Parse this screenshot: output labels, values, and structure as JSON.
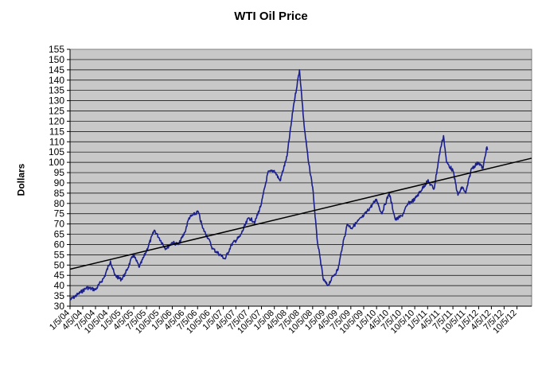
{
  "chart_data": {
    "type": "line",
    "title": "WTI Oil Price",
    "ylabel": "Dollars",
    "xlabel": "",
    "ylim": [
      30,
      155
    ],
    "yticks": [
      30,
      35,
      40,
      45,
      50,
      55,
      60,
      65,
      70,
      75,
      80,
      85,
      90,
      95,
      100,
      105,
      110,
      115,
      120,
      125,
      130,
      135,
      140,
      145,
      150,
      155
    ],
    "grid": true,
    "legend": "none",
    "x_tick_labels": [
      "1/5/04",
      "4/5/04",
      "7/5/04",
      "10/5/04",
      "1/5/05",
      "4/5/05",
      "7/5/05",
      "10/5/05",
      "1/5/06",
      "4/5/06",
      "7/5/06",
      "10/5/06",
      "1/5/07",
      "4/5/07",
      "7/5/07",
      "10/5/07",
      "1/5/08",
      "4/5/08",
      "7/5/08",
      "10/5/08",
      "1/5/09",
      "4/5/09",
      "7/5/09",
      "10/5/09",
      "1/5/10",
      "4/5/10",
      "7/5/10",
      "10/5/10",
      "1/5/11",
      "4/5/11",
      "7/5/11",
      "10/5/11",
      "1/5/12",
      "4/5/12",
      "7/5/12",
      "10/5/12"
    ],
    "series": [
      {
        "type": "line",
        "color": "#1a1f8c",
        "x": [
          "1/5/04",
          "3/5/04",
          "5/5/04",
          "7/5/04",
          "9/5/04",
          "10/20/04",
          "11/20/04",
          "1/5/05",
          "2/5/05",
          "4/1/05",
          "5/15/05",
          "7/5/05",
          "8/30/05",
          "10/5/05",
          "11/20/05",
          "1/5/06",
          "2/20/06",
          "4/5/06",
          "5/5/06",
          "7/10/06",
          "8/10/06",
          "9/20/06",
          "10/20/06",
          "1/18/07",
          "3/5/07",
          "5/5/07",
          "7/5/07",
          "8/20/07",
          "10/5/07",
          "11/20/07",
          "1/5/08",
          "2/15/08",
          "4/5/08",
          "5/20/08",
          "7/3/08",
          "8/5/08",
          "9/5/08",
          "10/5/08",
          "11/5/08",
          "12/20/08",
          "1/20/09",
          "3/5/09",
          "4/5/09",
          "5/5/09",
          "6/10/09",
          "7/10/09",
          "8/20/09",
          "10/5/09",
          "1/5/10",
          "2/10/10",
          "4/5/10",
          "5/20/10",
          "7/5/10",
          "8/20/10",
          "10/5/10",
          "1/5/11",
          "2/20/11",
          "4/5/11",
          "4/29/11",
          "5/20/11",
          "7/5/11",
          "8/10/11",
          "9/10/11",
          "10/5/11",
          "11/15/11",
          "1/5/12",
          "2/5/12",
          "3/1/12",
          "3/10/12"
        ],
        "y": [
          33,
          36,
          39,
          38,
          44,
          52,
          45,
          43,
          46,
          55,
          49,
          57,
          67,
          63,
          58,
          61,
          60,
          66,
          73,
          76,
          68,
          63,
          58,
          53,
          60,
          64,
          73,
          71,
          80,
          95,
          96,
          91,
          103,
          127,
          145,
          118,
          100,
          88,
          63,
          43,
          40,
          45,
          48,
          59,
          70,
          68,
          71,
          74,
          82,
          75,
          85,
          72,
          74,
          80,
          82,
          91,
          87,
          106,
          113,
          100,
          96,
          84,
          88,
          85,
          97,
          100,
          97,
          107,
          106
        ]
      },
      {
        "type": "trendline",
        "color": "#000000",
        "x": [
          "1/5/04",
          "1/18/13"
        ],
        "y": [
          48,
          102
        ]
      }
    ]
  }
}
